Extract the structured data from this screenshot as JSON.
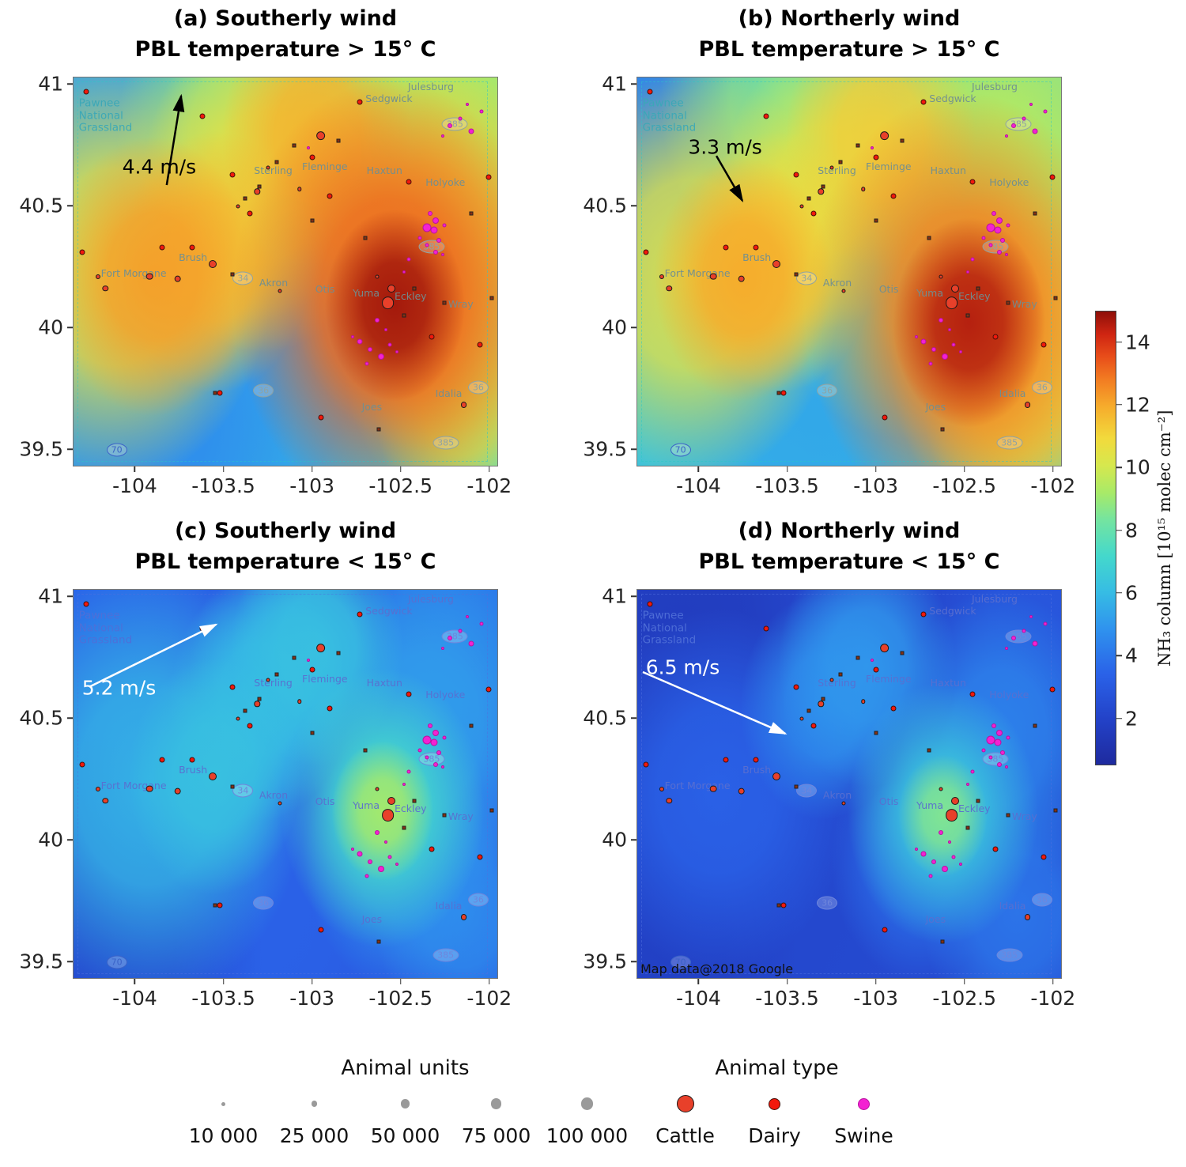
{
  "chart_data": {
    "type": "heatmap",
    "description": "Four-panel oversampled NH3 column maps over northeastern Colorado under different wind/temperature regimes, with CAFO point sources",
    "axes": {
      "lon_range": [
        -104.35,
        -101.95
      ],
      "lat_range": [
        39.43,
        41.03
      ],
      "x_ticks": [
        "-104",
        "-103.5",
        "-103",
        "-102.5",
        "-102"
      ],
      "x_values": [
        -104,
        -103.5,
        -103,
        -102.5,
        -102
      ],
      "y_ticks": [
        "41",
        "40.5",
        "40",
        "39.5"
      ],
      "y_values": [
        41,
        40.5,
        40,
        39.5
      ]
    },
    "colorbar": {
      "label": "NH₃ column [10¹⁵ molec cm⁻²]",
      "min": 0.5,
      "max": 15,
      "ticks": [
        2,
        4,
        6,
        8,
        10,
        12,
        14
      ],
      "stops": [
        [
          0.0,
          "#1e2a9e"
        ],
        [
          0.1,
          "#2342c8"
        ],
        [
          0.2,
          "#2a62e8"
        ],
        [
          0.3,
          "#2f93ee"
        ],
        [
          0.38,
          "#36bce4"
        ],
        [
          0.46,
          "#44d8cc"
        ],
        [
          0.54,
          "#74e4a0"
        ],
        [
          0.6,
          "#a8ea68"
        ],
        [
          0.66,
          "#d6e84e"
        ],
        [
          0.72,
          "#f2da3c"
        ],
        [
          0.79,
          "#f6ac2c"
        ],
        [
          0.85,
          "#f27c22"
        ],
        [
          0.9,
          "#e84e1a"
        ],
        [
          0.95,
          "#cf2512"
        ],
        [
          1.0,
          "#8e0f09"
        ]
      ]
    },
    "panels": [
      {
        "key": "a",
        "title_line1": "(a) Southerly wind",
        "title_line2": "PBL temperature > 15° C",
        "wind": {
          "label": "4.4 m/s",
          "speed_ms": 4.4,
          "color": "#000000",
          "tail": [
            21.9,
            27.6
          ],
          "head": [
            25.3,
            4.7
          ],
          "label_pos": [
            11.5,
            23
          ]
        },
        "base": 6.3,
        "label_color": "#6f8f92",
        "pawnee_color": "#3aa8b8",
        "shield_color": "#8fa3a3",
        "dash_color": "#2cc8c8",
        "blobs": [
          [
            -102.53,
            40.09,
            0.22,
            14.8
          ],
          [
            -102.55,
            40.12,
            0.5,
            13.2
          ],
          [
            -102.35,
            40.3,
            0.45,
            11.5
          ],
          [
            -102.28,
            40.55,
            0.45,
            9.5
          ],
          [
            -102.2,
            40.8,
            0.5,
            9.2
          ],
          [
            -102.55,
            40.95,
            0.45,
            8.8
          ],
          [
            -103.9,
            40.21,
            0.32,
            12.2
          ],
          [
            -104.12,
            40.25,
            0.5,
            10.5
          ],
          [
            -103.55,
            40.27,
            0.3,
            11.6
          ],
          [
            -103.28,
            40.58,
            0.38,
            10.6
          ],
          [
            -102.97,
            40.79,
            0.3,
            11.8
          ],
          [
            -103.35,
            40.78,
            0.42,
            9.0
          ],
          [
            -102.15,
            39.7,
            0.28,
            10.0
          ],
          [
            -102.2,
            39.9,
            0.35,
            8.5
          ],
          [
            -103.25,
            39.85,
            0.6,
            5.2
          ],
          [
            -104.0,
            39.62,
            0.5,
            4.6
          ],
          [
            -104.15,
            40.88,
            0.42,
            5.0
          ],
          [
            -103.6,
            40.0,
            0.5,
            5.5
          ],
          [
            -102.75,
            39.62,
            0.35,
            6.8
          ]
        ]
      },
      {
        "key": "b",
        "title_line1": "(b) Northerly wind",
        "title_line2": "PBL temperature > 15° C",
        "wind": {
          "label": "3.3 m/s",
          "speed_ms": 3.3,
          "color": "#000000",
          "tail": [
            18.6,
            20.1
          ],
          "head": [
            24.7,
            31.6
          ],
          "label_pos": [
            12,
            18
          ]
        },
        "base": 6.2,
        "label_color": "#6f8f92",
        "pawnee_color": "#3aa8b8",
        "shield_color": "#8fa3a3",
        "dash_color": "#2cc8c8",
        "blobs": [
          [
            -102.47,
            40.02,
            0.24,
            14.6
          ],
          [
            -102.5,
            40.07,
            0.5,
            12.8
          ],
          [
            -102.2,
            39.88,
            0.4,
            11.0
          ],
          [
            -102.3,
            40.4,
            0.45,
            9.6
          ],
          [
            -102.3,
            40.85,
            0.5,
            9.2
          ],
          [
            -103.75,
            40.2,
            0.28,
            12.0
          ],
          [
            -104.05,
            40.22,
            0.48,
            10.4
          ],
          [
            -103.55,
            40.27,
            0.3,
            11.0
          ],
          [
            -103.3,
            40.57,
            0.32,
            10.2
          ],
          [
            -102.97,
            40.78,
            0.3,
            11.2
          ],
          [
            -103.5,
            40.93,
            0.4,
            8.6
          ],
          [
            -102.2,
            39.72,
            0.3,
            9.6
          ],
          [
            -104.1,
            40.85,
            0.5,
            4.2
          ],
          [
            -104.22,
            40.5,
            0.4,
            4.8
          ],
          [
            -103.35,
            39.78,
            0.55,
            5.4
          ],
          [
            -102.85,
            40.35,
            0.45,
            7.8
          ],
          [
            -103.05,
            40.05,
            0.5,
            5.8
          ]
        ]
      },
      {
        "key": "c",
        "title_line1": "(c) Southerly wind",
        "title_line2": "PBL temperature < 15° C",
        "wind": {
          "label": "5.2 m/s",
          "speed_ms": 5.2,
          "color": "#ffffff",
          "tail": [
            3.7,
            24.9
          ],
          "head": [
            33.5,
            8.9
          ],
          "label_pos": [
            2,
            25.3
          ]
        },
        "base": 3.1,
        "label_color": "#5a6fd0",
        "pawnee_color": "#4f6fd8",
        "shield_color": "#6f86dc",
        "dash_color": "#5070e0",
        "blobs": [
          [
            -102.6,
            40.12,
            0.16,
            9.2
          ],
          [
            -102.6,
            40.13,
            0.32,
            7.2
          ],
          [
            -103.93,
            40.22,
            0.5,
            5.8
          ],
          [
            -103.55,
            40.26,
            0.27,
            6.2
          ],
          [
            -103.3,
            40.58,
            0.28,
            6.0
          ],
          [
            -102.97,
            40.79,
            0.27,
            6.2
          ],
          [
            -103.15,
            40.7,
            0.3,
            5.2
          ],
          [
            -102.35,
            40.45,
            0.38,
            5.2
          ],
          [
            -102.5,
            39.92,
            0.3,
            4.8
          ],
          [
            -102.2,
            40.88,
            0.38,
            4.4
          ],
          [
            -102.15,
            39.7,
            0.28,
            4.6
          ],
          [
            -104.18,
            39.58,
            0.5,
            2.2
          ],
          [
            -104.15,
            40.9,
            0.42,
            3.6
          ],
          [
            -103.4,
            39.78,
            0.55,
            3.4
          ],
          [
            -102.0,
            40.1,
            0.4,
            3.6
          ]
        ]
      },
      {
        "key": "d",
        "title_line1": "(d) Northerly wind",
        "title_line2": "PBL temperature < 15° C",
        "wind": {
          "label": "6.5 m/s",
          "speed_ms": 6.5,
          "color": "#ffffff",
          "tail": [
            1.3,
            21.1
          ],
          "head": [
            34.8,
            36.9
          ],
          "label_pos": [
            2,
            20
          ]
        },
        "base": 2.3,
        "label_color": "#5a6fd0",
        "pawnee_color": "#4f6fd8",
        "shield_color": "#6f86dc",
        "dash_color": "#5070e0",
        "attribution": "Map data@2018 Google",
        "blobs": [
          [
            -102.62,
            40.1,
            0.14,
            8.6
          ],
          [
            -102.62,
            40.11,
            0.3,
            6.4
          ],
          [
            -103.05,
            40.72,
            0.28,
            5.0
          ],
          [
            -103.3,
            40.55,
            0.26,
            4.6
          ],
          [
            -102.3,
            40.42,
            0.34,
            4.4
          ],
          [
            -103.9,
            40.2,
            0.42,
            3.4
          ],
          [
            -102.2,
            39.7,
            0.3,
            4.0
          ],
          [
            -102.75,
            39.92,
            0.28,
            3.8
          ],
          [
            -104.1,
            40.85,
            0.5,
            1.6
          ],
          [
            -104.22,
            39.55,
            0.45,
            1.8
          ],
          [
            -102.08,
            40.9,
            0.32,
            2.9
          ],
          [
            -103.6,
            39.8,
            0.5,
            2.2
          ]
        ]
      }
    ],
    "places": [
      {
        "name": "Pawnee\nNational\nGrassland",
        "x": 2.5,
        "y": 10,
        "big": true
      },
      {
        "name": "Julesburg",
        "x": 80,
        "y": 2.5
      },
      {
        "name": "Sedgwick",
        "x": 70,
        "y": 5.5
      },
      {
        "name": "Sterling",
        "x": 43.5,
        "y": 24
      },
      {
        "name": "Fleminge",
        "x": 55,
        "y": 23
      },
      {
        "name": "Haxtun",
        "x": 70,
        "y": 24
      },
      {
        "name": "Holyoke",
        "x": 84,
        "y": 27
      },
      {
        "name": "Fort Morgane",
        "x": 8,
        "y": 50.5
      },
      {
        "name": "Brush",
        "x": 25.5,
        "y": 46.5
      },
      {
        "name": "Akron",
        "x": 44.5,
        "y": 53
      },
      {
        "name": "Otis",
        "x": 57.5,
        "y": 54.5
      },
      {
        "name": "Yuma",
        "x": 66.5,
        "y": 55.5
      },
      {
        "name": "Eckley",
        "x": 76.5,
        "y": 56.5
      },
      {
        "name": "Wray",
        "x": 89,
        "y": 58.5
      },
      {
        "name": "Joes",
        "x": 68.5,
        "y": 85
      },
      {
        "name": "Idalia",
        "x": 86,
        "y": 81.5
      }
    ],
    "roads": [
      {
        "label": "385",
        "x": 90,
        "y": 12
      },
      {
        "label": "385",
        "x": 84.5,
        "y": 43.5
      },
      {
        "label": "34",
        "x": 40,
        "y": 51.8
      },
      {
        "label": "36",
        "x": 44.8,
        "y": 80.6
      },
      {
        "label": "36",
        "x": 95.5,
        "y": 79.8
      },
      {
        "label": "385",
        "x": 87.8,
        "y": 94
      },
      {
        "label": "70",
        "x": 10.2,
        "y": 96,
        "interstate": true
      }
    ],
    "sources": {
      "cattle": [
        [
          -102.57,
          40.1,
          100000
        ],
        [
          -102.55,
          40.16,
          40000
        ],
        [
          -102.95,
          40.79,
          55000
        ],
        [
          -103.56,
          40.26,
          40000
        ],
        [
          -103.76,
          40.2,
          30000
        ],
        [
          -103.92,
          40.21,
          30000
        ],
        [
          -104.17,
          40.16,
          22000
        ],
        [
          -104.21,
          40.21,
          15000
        ],
        [
          -103.31,
          40.56,
          22000
        ],
        [
          -102.14,
          39.68,
          25000
        ],
        [
          -103.07,
          40.57,
          12000
        ],
        [
          -103.25,
          40.66,
          10000
        ],
        [
          -103.42,
          40.5,
          9000
        ],
        [
          -102.63,
          40.21,
          8000
        ],
        [
          -103.18,
          40.15,
          8000
        ]
      ],
      "dairy": [
        [
          -104.28,
          40.97
        ],
        [
          -103.62,
          40.87
        ],
        [
          -102.73,
          40.93
        ],
        [
          -103.45,
          40.63
        ],
        [
          -103.35,
          40.47
        ],
        [
          -102.9,
          40.54
        ],
        [
          -103.68,
          40.33
        ],
        [
          -104.3,
          40.31
        ],
        [
          -102.95,
          39.63
        ],
        [
          -102.32,
          39.96
        ],
        [
          -102.0,
          40.62
        ],
        [
          -103.0,
          40.7
        ],
        [
          -102.45,
          40.6
        ],
        [
          -103.85,
          40.33
        ],
        [
          -103.52,
          39.73
        ],
        [
          -102.05,
          39.93
        ]
      ],
      "swine": [
        [
          -102.33,
          40.47,
          6
        ],
        [
          -102.3,
          40.44,
          8
        ],
        [
          -102.35,
          40.41,
          11
        ],
        [
          -102.31,
          40.4,
          9
        ],
        [
          -102.28,
          40.36,
          6
        ],
        [
          -102.35,
          40.34,
          5
        ],
        [
          -102.3,
          40.31,
          6
        ],
        [
          -102.25,
          40.42,
          5
        ],
        [
          -102.39,
          40.37,
          5
        ],
        [
          -102.26,
          40.3,
          4
        ],
        [
          -102.73,
          39.94,
          7
        ],
        [
          -102.67,
          39.91,
          6
        ],
        [
          -102.61,
          39.88,
          8
        ],
        [
          -102.69,
          39.85,
          5
        ],
        [
          -102.77,
          39.96,
          4
        ],
        [
          -102.56,
          39.93,
          5
        ],
        [
          -102.63,
          40.03,
          6
        ],
        [
          -102.58,
          39.99,
          4
        ],
        [
          -102.52,
          39.9,
          4
        ],
        [
          -102.22,
          40.83,
          6
        ],
        [
          -102.16,
          40.86,
          5
        ],
        [
          -102.1,
          40.81,
          7
        ],
        [
          -102.26,
          40.79,
          4
        ],
        [
          -102.04,
          40.89,
          5
        ],
        [
          -102.12,
          40.92,
          4
        ],
        [
          -102.45,
          40.28,
          5
        ],
        [
          -102.48,
          40.23,
          4
        ],
        [
          -103.02,
          40.74,
          4
        ]
      ],
      "squares": [
        [
          -103.2,
          40.68
        ],
        [
          -103.1,
          40.75
        ],
        [
          -102.85,
          40.77
        ],
        [
          -103.38,
          40.53
        ],
        [
          -102.7,
          40.37
        ],
        [
          -102.42,
          40.16
        ],
        [
          -102.25,
          40.1
        ],
        [
          -103.45,
          40.22
        ],
        [
          -103.0,
          40.44
        ],
        [
          -102.1,
          40.47
        ],
        [
          -101.98,
          40.12
        ],
        [
          -102.62,
          39.58
        ],
        [
          -103.55,
          39.73
        ],
        [
          -103.3,
          40.58
        ],
        [
          -102.48,
          40.05
        ]
      ]
    }
  },
  "legend": {
    "units_title": "Animal units",
    "types_title": "Animal type",
    "units": [
      {
        "label": "10 000",
        "units": 10000
      },
      {
        "label": "25 000",
        "units": 25000
      },
      {
        "label": "50 000",
        "units": 50000
      },
      {
        "label": "75 000",
        "units": 75000
      },
      {
        "label": "100 000",
        "units": 100000
      }
    ],
    "types": [
      {
        "label": "Cattle",
        "color": "#e8402a",
        "border": "#1a1a1a",
        "d": 22
      },
      {
        "label": "Dairy",
        "color": "#f2180c",
        "border": "#44100a",
        "d": 15
      },
      {
        "label": "Swine",
        "color": "#f322d2",
        "border": "#b912a0",
        "d": 15
      }
    ]
  }
}
